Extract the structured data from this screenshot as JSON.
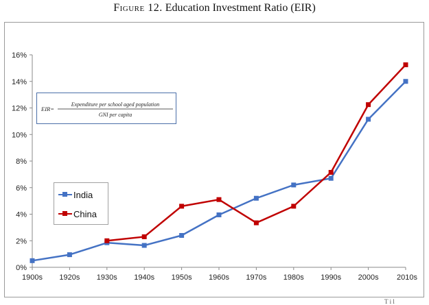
{
  "figure": {
    "label": "Figure 12.",
    "title": "Education Investment Ratio (EIR)"
  },
  "formula": {
    "lhs": "EIR=",
    "numerator": "Expenditure per school aged population",
    "denominator": "GNI per capita"
  },
  "footer_fragment": "T i l",
  "chart_data": {
    "type": "line",
    "title": "",
    "xlabel": "",
    "ylabel": "",
    "categories": [
      "1900s",
      "1920s",
      "1930s",
      "1940s",
      "1950s",
      "1960s",
      "1970s",
      "1980s",
      "1990s",
      "2000s",
      "2010s"
    ],
    "y_ticks": [
      "0%",
      "2%",
      "4%",
      "6%",
      "8%",
      "10%",
      "12%",
      "14%",
      "16%"
    ],
    "ylim": [
      0,
      16
    ],
    "grid": false,
    "legend_position": "left-middle",
    "series": [
      {
        "name": "India",
        "color": "#4472c4",
        "values": [
          0.5,
          0.95,
          1.85,
          1.65,
          2.4,
          3.95,
          5.2,
          6.2,
          6.7,
          11.15,
          14.0
        ]
      },
      {
        "name": "China",
        "color": "#c00000",
        "values": [
          null,
          null,
          2.0,
          2.3,
          4.6,
          5.1,
          3.35,
          4.6,
          7.15,
          12.25,
          15.25
        ]
      }
    ]
  }
}
